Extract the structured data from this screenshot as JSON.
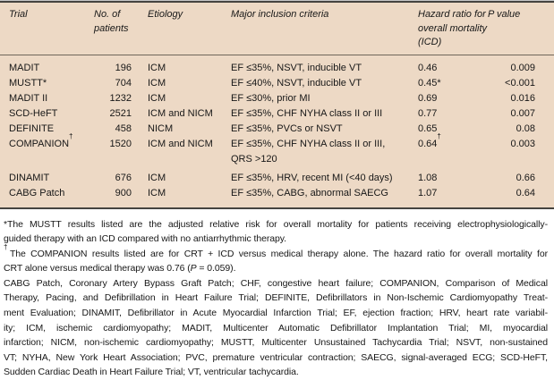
{
  "colors": {
    "table_bg": "#edd9c5",
    "border_dark": "#454440",
    "border_light": "#c7c7c7",
    "header_rule": "#6f675b",
    "text": "#171717",
    "page_bg": "#ffffff"
  },
  "table": {
    "headers": {
      "trial": "Trial",
      "patients": "No. of patients",
      "etiology": "Etiology",
      "criteria": "Major inclusion criteria",
      "hazard": "Hazard ratio for overall mortality (ICD)",
      "pvalue": "P value"
    },
    "rows": [
      {
        "trial": "MADIT",
        "patients": "196",
        "etiology": "ICM",
        "criteria": "EF ≤35%, NSVT, inducible VT",
        "hazard": "0.46",
        "p": "0.009"
      },
      {
        "trial": "MUSTT*",
        "patients": "704",
        "etiology": "ICM",
        "criteria": "EF ≤40%, NSVT, inducible VT",
        "hazard": "0.45*",
        "p": "<0.001"
      },
      {
        "trial": "MADIT II",
        "patients": "1232",
        "etiology": "ICM",
        "criteria": "EF ≤30%, prior MI",
        "hazard": "0.69",
        "p": "0.016"
      },
      {
        "trial": "SCD-HeFT",
        "patients": "2521",
        "etiology": "ICM and NICM",
        "criteria": "EF ≤35%, CHF NYHA class II or III",
        "hazard": "0.77",
        "p": "0.007"
      },
      {
        "trial": "DEFINITE",
        "patients": "458",
        "etiology": "NICM",
        "criteria": "EF ≤35%, PVCs or NSVT",
        "hazard": "0.65",
        "p": "0.08"
      },
      {
        "trial": "COMPANION†",
        "patients": "1520",
        "etiology": "ICM and NICM",
        "criteria": "EF ≤35%, CHF NYHA class II or III,\nQRS >120",
        "hazard": "0.64†",
        "p": "0.003"
      },
      {
        "trial": "DINAMIT",
        "patients": "676",
        "etiology": "ICM",
        "criteria": "EF ≤35%, HRV, recent MI (<40 days)",
        "hazard": "1.08",
        "p": "0.66"
      },
      {
        "trial": "CABG Patch",
        "patients": "900",
        "etiology": "ICM",
        "criteria": "EF ≤35%, CABG, abnormal SAECG",
        "hazard": "1.07",
        "p": "0.64"
      }
    ]
  },
  "footnotes": [
    {
      "name": "footnote-mustt",
      "lines": [
        "*The MUSTT results listed are the adjusted relative risk for overall mortality for patients receiving electrophysiologically-",
        "guided therapy with an ICD compared with no antiarrhythmic therapy."
      ]
    },
    {
      "name": "footnote-companion",
      "lines": [
        "†The COMPANION results listed are for CRT + ICD versus medical therapy alone. The hazard ratio for overall mortality for",
        "CRT alone versus medical therapy was 0.76 (P = 0.059)."
      ]
    },
    {
      "name": "abbreviations-note",
      "lines": [
        "CABG Patch, Coronary Artery Bypass Graft Patch; CHF, congestive heart failure; COMPANION, Comparison of Medical",
        "Therapy, Pacing, and Defibrillation in Heart Failure Trial; DEFINITE, Defibrillators in Non-Ischemic Cardiomyopathy Treat-",
        "ment Evaluation; DINAMIT, Defibrillator in Acute Myocardial Infarction Trial; EF, ejection fraction; HRV, heart rate variabil-",
        "ity; ICM, ischemic cardiomyopathy; MADIT, Multicenter Automatic Defibrillator Implantation Trial; MI, myocardial",
        "infarction; NICM, non-ischemic cardiomyopathy; MUSTT, Multicenter Unsustained Tachycardia Trial; NSVT, non-sustained",
        "VT; NYHA, New York Heart Association; PVC, premature ventricular contraction; SAECG, signal-averaged ECG; SCD-HeFT,",
        "Sudden Cardiac Death in Heart Failure Trial; VT, ventricular tachycardia."
      ]
    }
  ]
}
